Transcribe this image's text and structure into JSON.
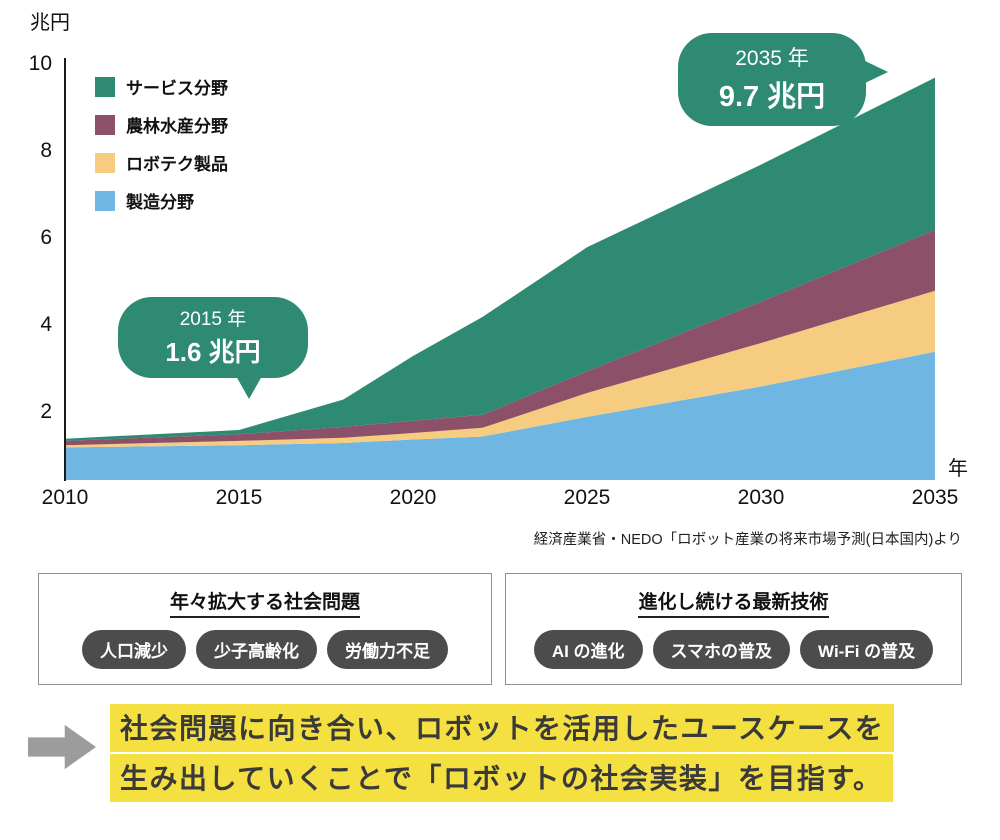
{
  "chart": {
    "y_unit": "兆円",
    "x_unit": "年",
    "source": "経済産業省・NEDO「ロボット産業の将来市場予測(日本国内)より",
    "callouts": [
      {
        "year": "2015 年",
        "value": "1.6 兆円"
      },
      {
        "year": "2035 年",
        "value": "9.7 兆円"
      }
    ]
  },
  "chart_data": {
    "type": "area",
    "stacked": true,
    "title": "ロボット産業の将来市場予測(日本国内)",
    "xlabel": "年",
    "ylabel": "兆円",
    "x": [
      2010,
      2015,
      2018,
      2020,
      2022,
      2025,
      2030,
      2035
    ],
    "x_ticks": [
      2010,
      2015,
      2020,
      2025,
      2030,
      2035
    ],
    "y_ticks": [
      2,
      4,
      6,
      8,
      10
    ],
    "ylim": [
      0,
      10
    ],
    "grid": false,
    "legend_position": "top-left",
    "legend_order": [
      "サービス分野",
      "農林水産分野",
      "ロボテク製品",
      "製造分野"
    ],
    "series": [
      {
        "name": "製造分野",
        "color": "#6FB7E2",
        "values": [
          1.2,
          1.25,
          1.3,
          1.38,
          1.45,
          1.9,
          2.6,
          3.4
        ]
      },
      {
        "name": "ロボテク製品",
        "color": "#F6CC80",
        "values": [
          0.05,
          0.1,
          0.12,
          0.15,
          0.2,
          0.55,
          1.0,
          1.4
        ]
      },
      {
        "name": "農林水産分野",
        "color": "#8C5168",
        "values": [
          0.1,
          0.15,
          0.25,
          0.28,
          0.3,
          0.5,
          0.95,
          1.4
        ]
      },
      {
        "name": "サービス分野",
        "color": "#2E8A72",
        "values": [
          0.05,
          0.1,
          0.63,
          1.49,
          2.25,
          2.85,
          3.15,
          3.5
        ]
      }
    ],
    "totals_annotated": [
      {
        "x": 2015,
        "total": 1.6
      },
      {
        "x": 2035,
        "total": 9.7
      }
    ]
  },
  "boxes": [
    {
      "title": "年々拡大する社会問題",
      "pills": [
        "人口減少",
        "少子高齢化",
        "労働力不足"
      ]
    },
    {
      "title": "進化し続ける最新技術",
      "pills": [
        "AI の進化",
        "スマホの普及",
        "Wi-Fi の普及"
      ]
    }
  ],
  "conclusion": {
    "line1": "社会問題に向き合い、ロボットを活用したユースケースを",
    "line2": "生み出していくことで「ロボットの社会実装」を目指す。",
    "highlight_color": "#F5E042"
  },
  "colors": {
    "service_teal": "#2E8A72",
    "agriculture_plum": "#8C5168",
    "robotech_sand": "#F6CC80",
    "manufacturing_sky": "#6FB7E2",
    "pill_bg": "#4C4C4C",
    "arrow_gray": "#9C9C9C",
    "highlight_yellow": "#F5E042"
  }
}
